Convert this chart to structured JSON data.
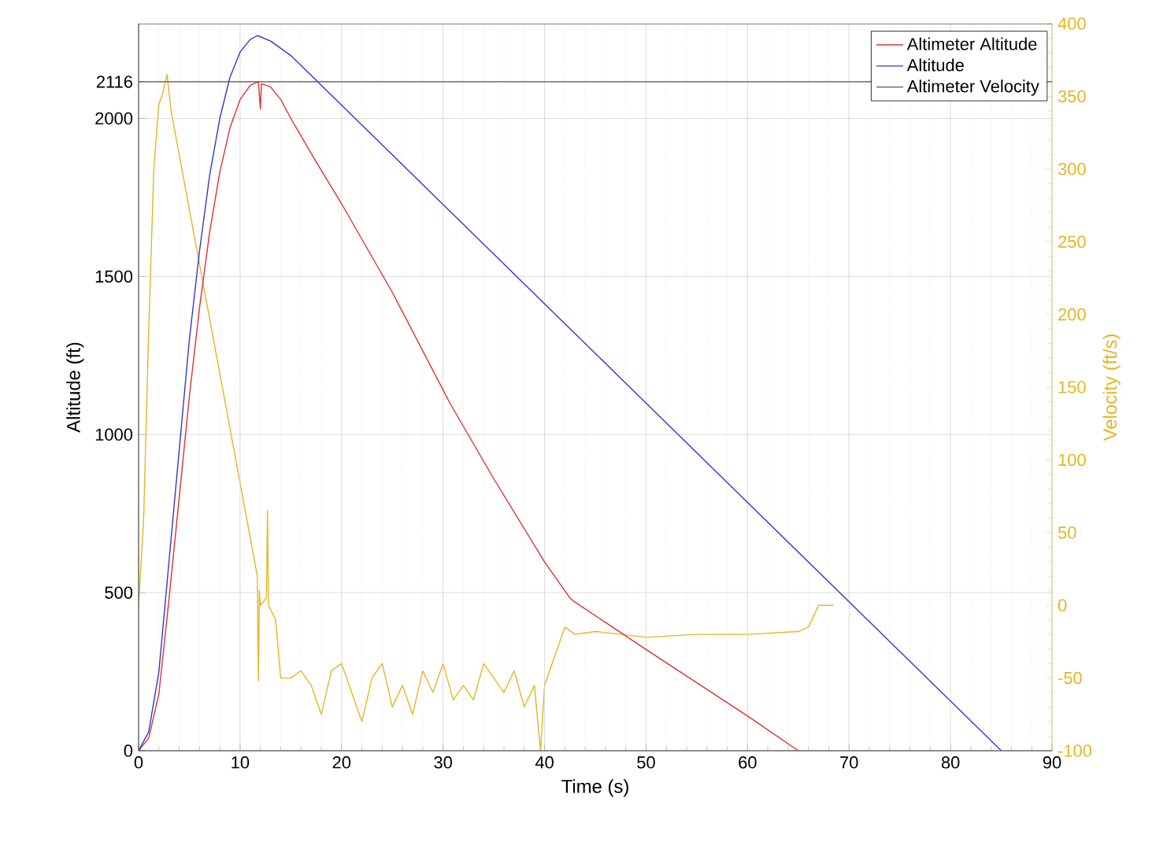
{
  "chart_data": {
    "type": "line",
    "xlabel": "Time (s)",
    "ylabel": "Altitude (ft)",
    "y2label": "Velocity (ft/s)",
    "xlim": [
      0,
      90
    ],
    "xticks": [
      0,
      10,
      20,
      30,
      40,
      50,
      60,
      70,
      80,
      90
    ],
    "ylim": [
      0,
      2300
    ],
    "yticks": [
      0,
      500,
      1000,
      1500,
      2000,
      2116
    ],
    "y2lim": [
      -100,
      400
    ],
    "y2ticks": [
      -100,
      -50,
      0,
      50,
      100,
      150,
      200,
      250,
      300,
      350,
      400
    ],
    "grid": true,
    "legend": "top right",
    "series": [
      {
        "name": "Altimeter Altitude",
        "color": "#e03030",
        "x": [
          0,
          1,
          2,
          3,
          4,
          5,
          6,
          7,
          8,
          9,
          10,
          11,
          11.8,
          12,
          12.1,
          13,
          14,
          15,
          17.4,
          20,
          25,
          30.6,
          35,
          40,
          42.5,
          43,
          50,
          55,
          60,
          65
        ],
        "values": [
          0,
          40,
          180,
          480,
          800,
          1120,
          1400,
          1640,
          1830,
          1970,
          2060,
          2105,
          2116,
          2030,
          2110,
          2100,
          2060,
          2000,
          1868,
          1730,
          1450,
          1104,
          860,
          597,
          483,
          470,
          320,
          215,
          110,
          0
        ]
      },
      {
        "name": "Altitude",
        "color": "#3535d0",
        "x": [
          0,
          1,
          2,
          3,
          4,
          5,
          6,
          7,
          8,
          9,
          10,
          11,
          11.7,
          13,
          15,
          45.4,
          85
        ],
        "values": [
          0,
          60,
          250,
          600,
          950,
          1300,
          1580,
          1820,
          2000,
          2130,
          2210,
          2250,
          2262,
          2245,
          2199,
          1244,
          0
        ]
      },
      {
        "color": "#e8b420",
        "axis": "y2",
        "x": [
          0,
          0.5,
          1,
          1.5,
          2,
          2.3,
          2.8,
          3.2,
          5.7,
          11.7,
          11.8,
          11.9,
          12,
          12.6,
          12.7,
          12.8,
          13.5,
          14,
          15,
          16,
          17,
          18,
          19,
          20,
          21,
          22,
          23,
          24,
          25,
          26,
          27,
          28,
          29,
          30,
          31,
          32,
          33,
          34,
          35,
          36,
          37,
          38,
          39,
          39.6,
          40,
          41,
          42,
          43,
          45,
          50,
          55,
          60,
          65,
          66,
          67,
          68.5
        ],
        "values": [
          0,
          60,
          190,
          300,
          345,
          350,
          365,
          340,
          246,
          20,
          -52,
          10,
          0,
          5,
          65,
          0,
          -10,
          -50,
          -50,
          -45,
          -55,
          -75,
          -45,
          -40,
          -60,
          -80,
          -50,
          -40,
          -70,
          -55,
          -75,
          -45,
          -60,
          -40,
          -65,
          -55,
          -65,
          -40,
          -50,
          -60,
          -45,
          -70,
          -55,
          -100,
          -55,
          -35,
          -15,
          -20,
          -18,
          -22,
          -20,
          -20,
          -18,
          -15,
          0,
          0
        ]
      }
    ],
    "ref_lines": [
      {
        "axis": "y",
        "value": 2116,
        "label": "Altimeter Velocity",
        "color": "#555555"
      }
    ]
  }
}
